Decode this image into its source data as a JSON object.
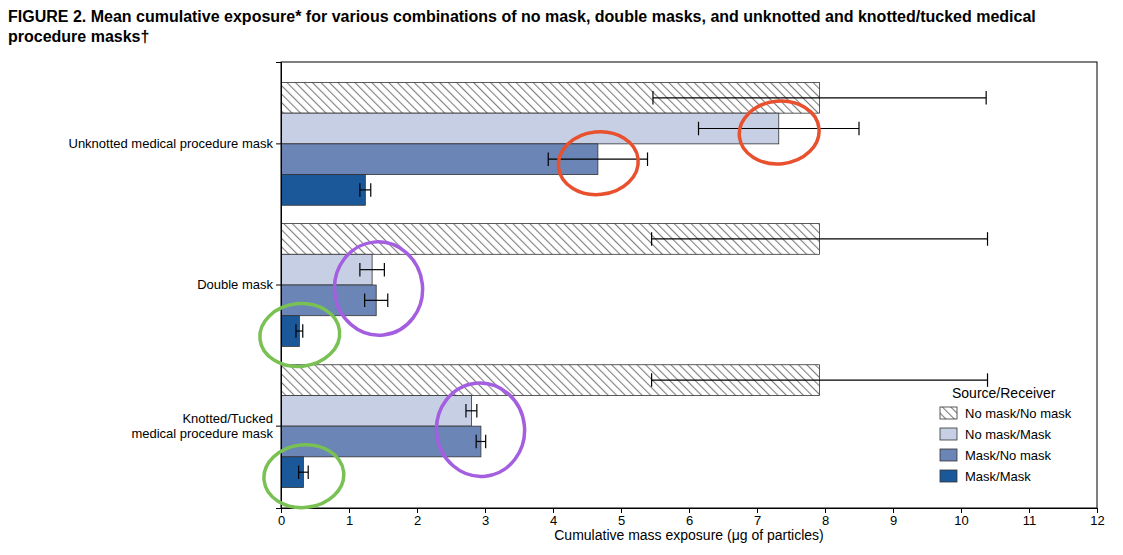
{
  "chart_data": {
    "type": "bar",
    "orientation": "horizontal",
    "title": "FIGURE 2. Mean cumulative exposure* for various combinations of no mask, double masks, and unknotted and knotted/tucked medical procedure masks†",
    "x_label": "Cumulative mass exposure (μg of particles)",
    "categories": [
      "Unknotted medical procedure mask",
      "Double mask",
      "Knotted/Tucked\nmedical procedure mask"
    ],
    "legend_title": "Source/Receiver",
    "legend": "lower right",
    "grid": false,
    "xlim": [
      0,
      12
    ],
    "xticks": [
      0,
      1,
      2,
      3,
      4,
      5,
      6,
      7,
      8,
      9,
      10,
      11,
      12
    ],
    "series": [
      {
        "name": "No mask/No mask",
        "color": "#7f7f7f",
        "values": [
          7.92,
          7.92,
          7.92
        ],
        "errors": [
          2.45,
          2.47,
          2.47
        ]
      },
      {
        "name": "No mask/Mask",
        "color": "#c6cfe4",
        "values": [
          7.32,
          1.34,
          2.8
        ],
        "errors": [
          1.18,
          0.18,
          0.08
        ]
      },
      {
        "name": "Mask/No mask",
        "color": "#6a85b6",
        "values": [
          4.66,
          1.4,
          2.94
        ],
        "errors": [
          0.73,
          0.17,
          0.07
        ]
      },
      {
        "name": "Mask/Mask",
        "color": "#1b5899",
        "values": [
          1.24,
          0.27,
          0.33
        ],
        "errors": [
          0.08,
          0.05,
          0.07
        ]
      }
    ]
  }
}
